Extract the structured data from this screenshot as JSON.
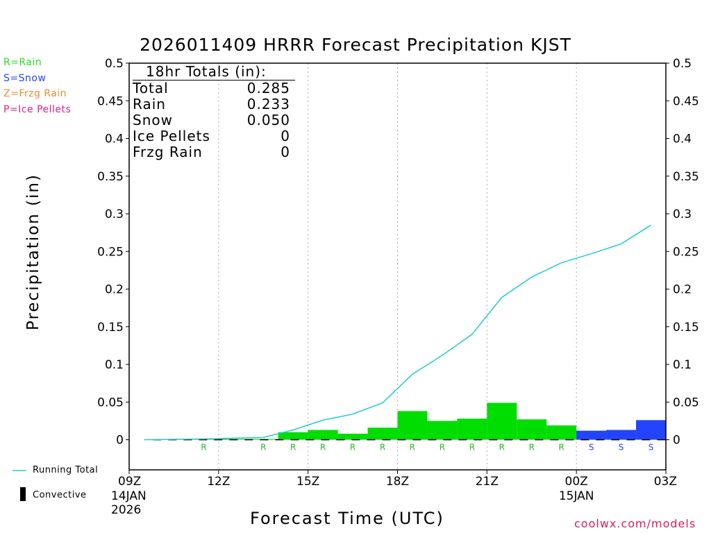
{
  "title": "2026011409 HRRR Forecast Precipitation KJST",
  "legend_types": [
    {
      "label": "R=Rain",
      "color": "#22dd22"
    },
    {
      "label": "S=Snow",
      "color": "#2244ff"
    },
    {
      "label": "Z=Frzg Rain",
      "color": "#f08a30"
    },
    {
      "label": "P=Ice Pellets",
      "color": "#e0208a"
    }
  ],
  "totals": {
    "header": "18hr Totals (in):",
    "rows": [
      {
        "label": "Total",
        "value": "0.285"
      },
      {
        "label": "Rain",
        "value": "0.233"
      },
      {
        "label": "Snow",
        "value": "0.050"
      },
      {
        "label": "Ice Pellets",
        "value": "0"
      },
      {
        "label": "Frzg Rain",
        "value": "0"
      }
    ]
  },
  "legend_bottom": {
    "running_total": "Running Total",
    "convective": "Convective"
  },
  "credit": "coolwx.com/models",
  "chart_data": {
    "type": "bar",
    "ylabel": "Precipitation (in)",
    "xlabel": "Forecast Time (UTC)",
    "ylim": [
      -0.04,
      0.5
    ],
    "yticks": [
      0,
      0.05,
      0.1,
      0.15,
      0.2,
      0.25,
      0.3,
      0.35,
      0.4,
      0.45,
      0.5
    ],
    "ytick_labels": [
      "0",
      "0.05",
      "0.1",
      "0.15",
      "0.2",
      "0.25",
      "0.3",
      "0.35",
      "0.4",
      "0.45",
      "0.5"
    ],
    "xlim": [
      0,
      18
    ],
    "xticks": [
      {
        "hour": 0,
        "label": "09Z",
        "sub": [
          "14JAN",
          "2026"
        ]
      },
      {
        "hour": 3,
        "label": "12Z",
        "sub": []
      },
      {
        "hour": 6,
        "label": "15Z",
        "sub": []
      },
      {
        "hour": 9,
        "label": "18Z",
        "sub": []
      },
      {
        "hour": 12,
        "label": "21Z",
        "sub": []
      },
      {
        "hour": 15,
        "label": "00Z",
        "sub": [
          "15JAN"
        ]
      },
      {
        "hour": 18,
        "label": "03Z",
        "sub": []
      }
    ],
    "grid": "vertical dotted at major ticks",
    "bars": [
      {
        "hour": 1,
        "value": 0.0,
        "type": ""
      },
      {
        "hour": 2,
        "value": 0.0005,
        "type": ""
      },
      {
        "hour": 3,
        "value": 0.0005,
        "type": "R"
      },
      {
        "hour": 4,
        "value": 0.001,
        "type": ""
      },
      {
        "hour": 5,
        "value": 0.001,
        "type": "R"
      },
      {
        "hour": 6,
        "value": 0.01,
        "type": "R"
      },
      {
        "hour": 7,
        "value": 0.013,
        "type": "R"
      },
      {
        "hour": 8,
        "value": 0.008,
        "type": "R"
      },
      {
        "hour": 9,
        "value": 0.016,
        "type": "R"
      },
      {
        "hour": 10,
        "value": 0.038,
        "type": "R"
      },
      {
        "hour": 11,
        "value": 0.025,
        "type": "R"
      },
      {
        "hour": 12,
        "value": 0.028,
        "type": "R"
      },
      {
        "hour": 13,
        "value": 0.049,
        "type": "R"
      },
      {
        "hour": 14,
        "value": 0.027,
        "type": "R"
      },
      {
        "hour": 15,
        "value": 0.019,
        "type": "R"
      },
      {
        "hour": 16,
        "value": 0.012,
        "type": "S"
      },
      {
        "hour": 17,
        "value": 0.013,
        "type": "S"
      },
      {
        "hour": 18,
        "value": 0.026,
        "type": "S"
      }
    ],
    "running_total": [
      {
        "hour": 1,
        "value": 0.0
      },
      {
        "hour": 2,
        "value": 0.0005
      },
      {
        "hour": 3,
        "value": 0.001
      },
      {
        "hour": 4,
        "value": 0.002
      },
      {
        "hour": 5,
        "value": 0.003
      },
      {
        "hour": 6,
        "value": 0.013
      },
      {
        "hour": 7,
        "value": 0.026
      },
      {
        "hour": 8,
        "value": 0.034
      },
      {
        "hour": 9,
        "value": 0.049
      },
      {
        "hour": 10,
        "value": 0.087
      },
      {
        "hour": 11,
        "value": 0.112
      },
      {
        "hour": 12,
        "value": 0.14
      },
      {
        "hour": 13,
        "value": 0.189
      },
      {
        "hour": 14,
        "value": 0.216
      },
      {
        "hour": 15,
        "value": 0.235
      },
      {
        "hour": 16,
        "value": 0.247
      },
      {
        "hour": 17,
        "value": 0.26
      },
      {
        "hour": 18,
        "value": 0.285
      }
    ],
    "colors": {
      "rain": "#00dd00",
      "snow": "#2244ff",
      "running_total": "#22cccc",
      "convective": "#000000",
      "grid": "#aaaaaa"
    }
  }
}
